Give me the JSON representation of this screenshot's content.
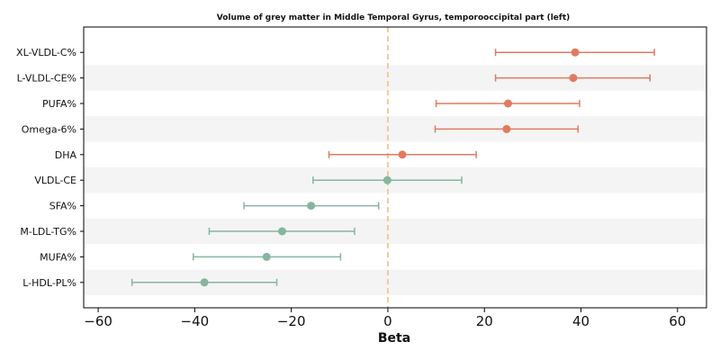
{
  "chart_data": {
    "type": "forest",
    "title": "Volume of grey matter in Middle Temporal Gyrus, temporooccipital part (left)",
    "xlabel": "Beta",
    "ylabel": "",
    "xlim": [
      -63,
      66
    ],
    "xticks": [
      -60,
      -40,
      -20,
      0,
      20,
      40,
      60
    ],
    "xtick_labels": [
      "−60",
      "−40",
      "−20",
      "0",
      "20",
      "40",
      "60"
    ],
    "reference_line": 0,
    "grid": false,
    "row_banding": true,
    "colors": {
      "positive": "#E07B61",
      "negative": "#86B69E",
      "reference": "#F2C58E",
      "band": "#F4F4F4"
    },
    "rows": [
      {
        "label": "XL-VLDL-C%",
        "beta": 38.8,
        "ci_low": 22.3,
        "ci_high": 55.2
      },
      {
        "label": "L-VLDL-CE%",
        "beta": 38.4,
        "ci_low": 22.3,
        "ci_high": 54.3
      },
      {
        "label": "PUFA%",
        "beta": 24.9,
        "ci_low": 10.0,
        "ci_high": 39.7
      },
      {
        "label": "Omega-6%",
        "beta": 24.6,
        "ci_low": 9.8,
        "ci_high": 39.4
      },
      {
        "label": "DHA",
        "beta": 3.0,
        "ci_low": -12.2,
        "ci_high": 18.3
      },
      {
        "label": "VLDL-CE",
        "beta": -0.1,
        "ci_low": -15.5,
        "ci_high": 15.3
      },
      {
        "label": "SFA%",
        "beta": -15.9,
        "ci_low": -29.8,
        "ci_high": -1.9
      },
      {
        "label": "M-LDL-TG%",
        "beta": -21.9,
        "ci_low": -37.0,
        "ci_high": -6.9
      },
      {
        "label": "MUFA%",
        "beta": -25.1,
        "ci_low": -40.3,
        "ci_high": -9.8
      },
      {
        "label": "L-HDL-PL%",
        "beta": -38.0,
        "ci_low": -53.0,
        "ci_high": -23.0
      }
    ]
  }
}
